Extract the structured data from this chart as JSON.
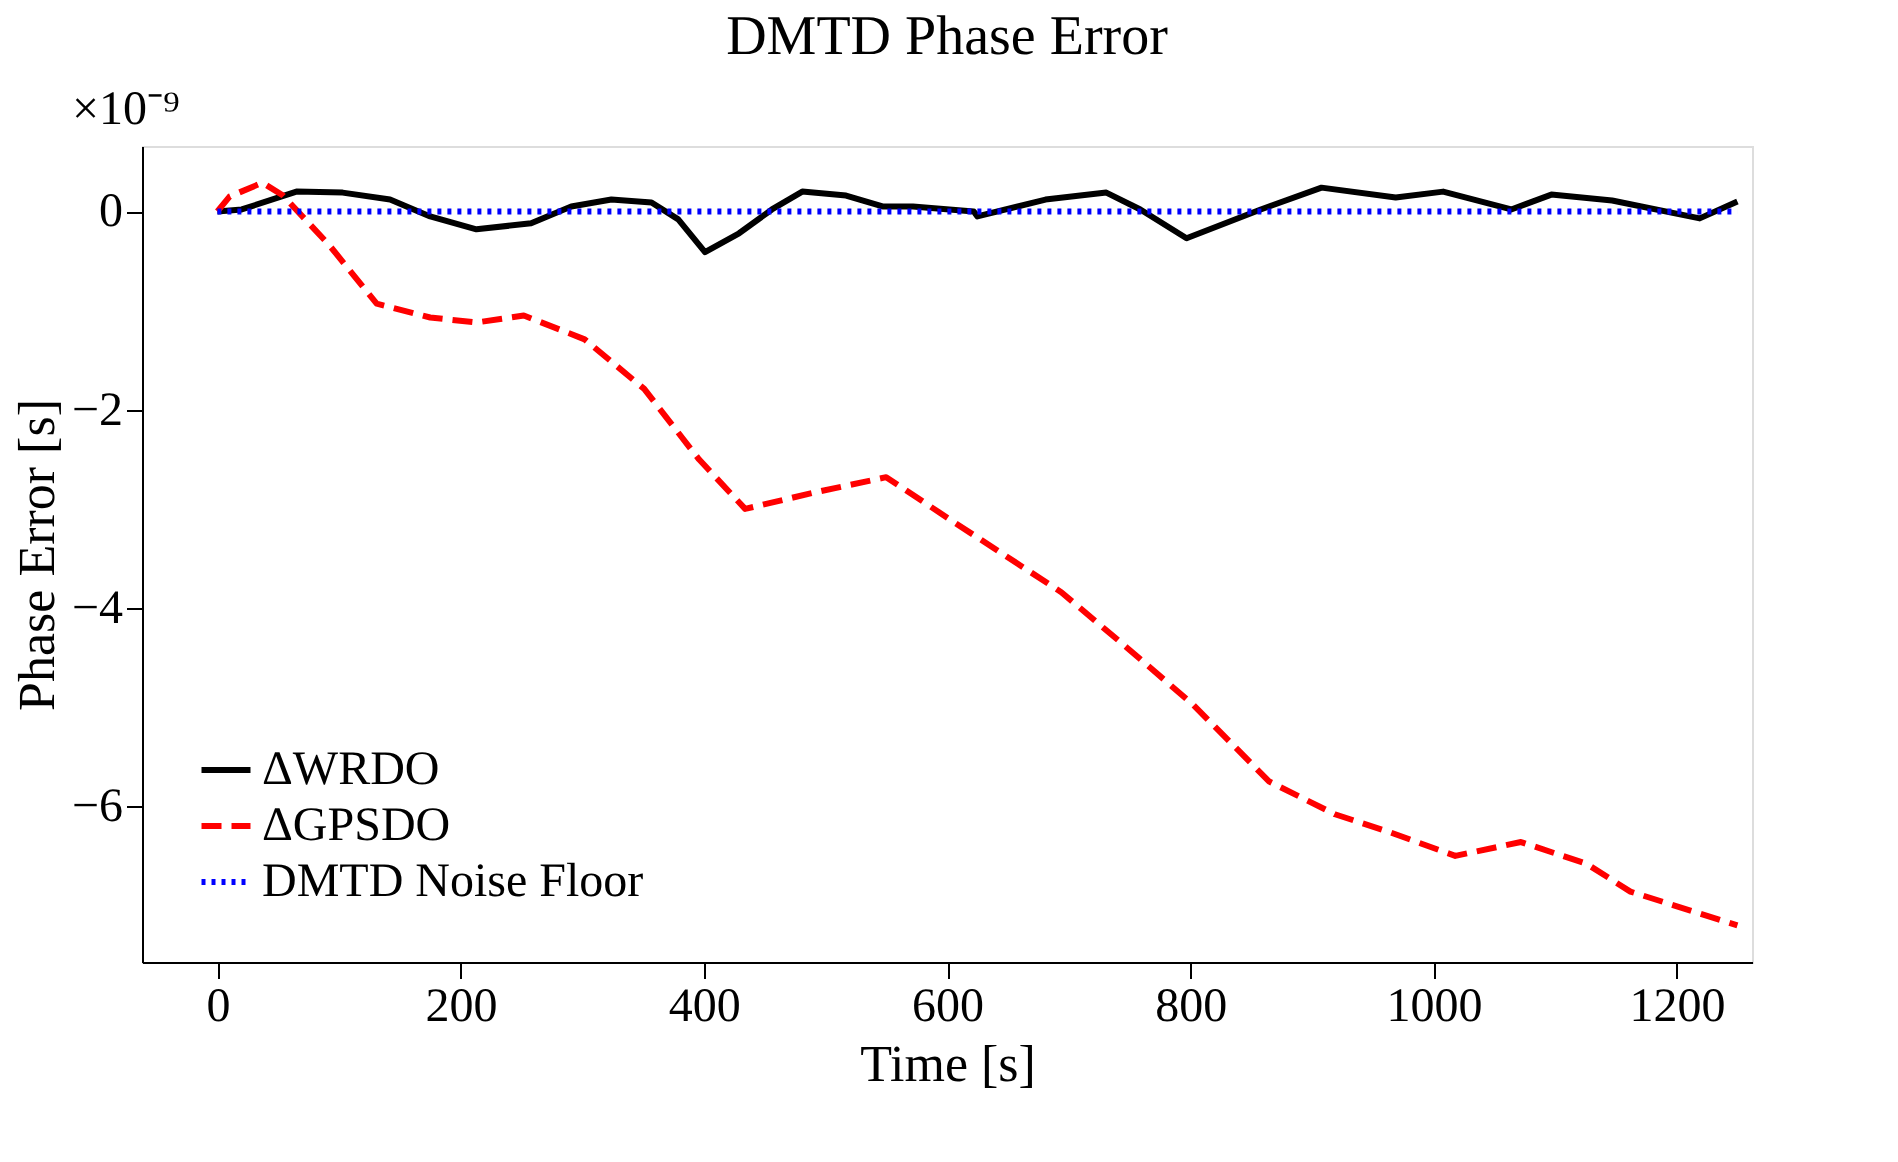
{
  "chart_data": {
    "type": "line",
    "title": "DMTD Phase Error",
    "xlabel": "Time [s]",
    "ylabel": "Phase Error [s]",
    "annotations": [
      "×10⁻⁹"
    ],
    "xlim": [
      -62,
      1262
    ],
    "xticks": [
      0,
      200,
      400,
      600,
      800,
      1000,
      1200
    ],
    "ylim": [
      -7.57,
      0.66
    ],
    "yticks": [
      0,
      -2,
      -4,
      -6
    ],
    "grid": false,
    "legend": "bottom left",
    "marker": "none",
    "series": [
      {
        "name": "ΔWRDO",
        "color": "#000000",
        "line_style": "solid",
        "x": [
          0,
          20,
          65,
          103,
          142,
          175,
          213,
          258,
          291,
          324,
          357,
          379,
          401,
          429,
          456,
          481,
          517,
          547,
          572,
          622,
          625,
          681,
          731,
          759,
          797,
          858,
          908,
          969,
          1008,
          1064,
          1097,
          1147,
          1219,
          1250
        ],
        "values": [
          0,
          0.02,
          0.2,
          0.19,
          0.12,
          -0.05,
          -0.18,
          -0.12,
          0.05,
          0.12,
          0.09,
          -0.08,
          -0.41,
          -0.22,
          0.02,
          0.2,
          0.16,
          0.05,
          0.05,
          0,
          -0.05,
          0.12,
          0.19,
          0.02,
          -0.27,
          0.02,
          0.24,
          0.14,
          0.2,
          0.02,
          0.17,
          0.11,
          -0.07,
          0.1
        ]
      },
      {
        "name": "ΔGPSDO",
        "color": "#ff0000",
        "line_style": "dashed",
        "x": [
          0,
          10,
          37,
          54,
          92,
          131,
          175,
          213,
          252,
          302,
          351,
          396,
          434,
          489,
          550,
          604,
          694,
          748,
          802,
          865,
          919,
          964,
          1018,
          1072,
          1126,
          1162,
          1250
        ],
        "values": [
          0,
          0.15,
          0.29,
          0.16,
          -0.34,
          -0.93,
          -1.07,
          -1.12,
          -1.05,
          -1.29,
          -1.79,
          -2.5,
          -3.0,
          -2.84,
          -2.68,
          -3.12,
          -3.84,
          -4.4,
          -4.97,
          -5.75,
          -6.08,
          -6.26,
          -6.5,
          -6.36,
          -6.58,
          -6.86,
          -7.2
        ]
      },
      {
        "name": "DMTD Noise Floor",
        "color": "#0000ff",
        "line_style": "dotted",
        "x": [
          0,
          1250
        ],
        "values": [
          0,
          0
        ]
      }
    ]
  }
}
